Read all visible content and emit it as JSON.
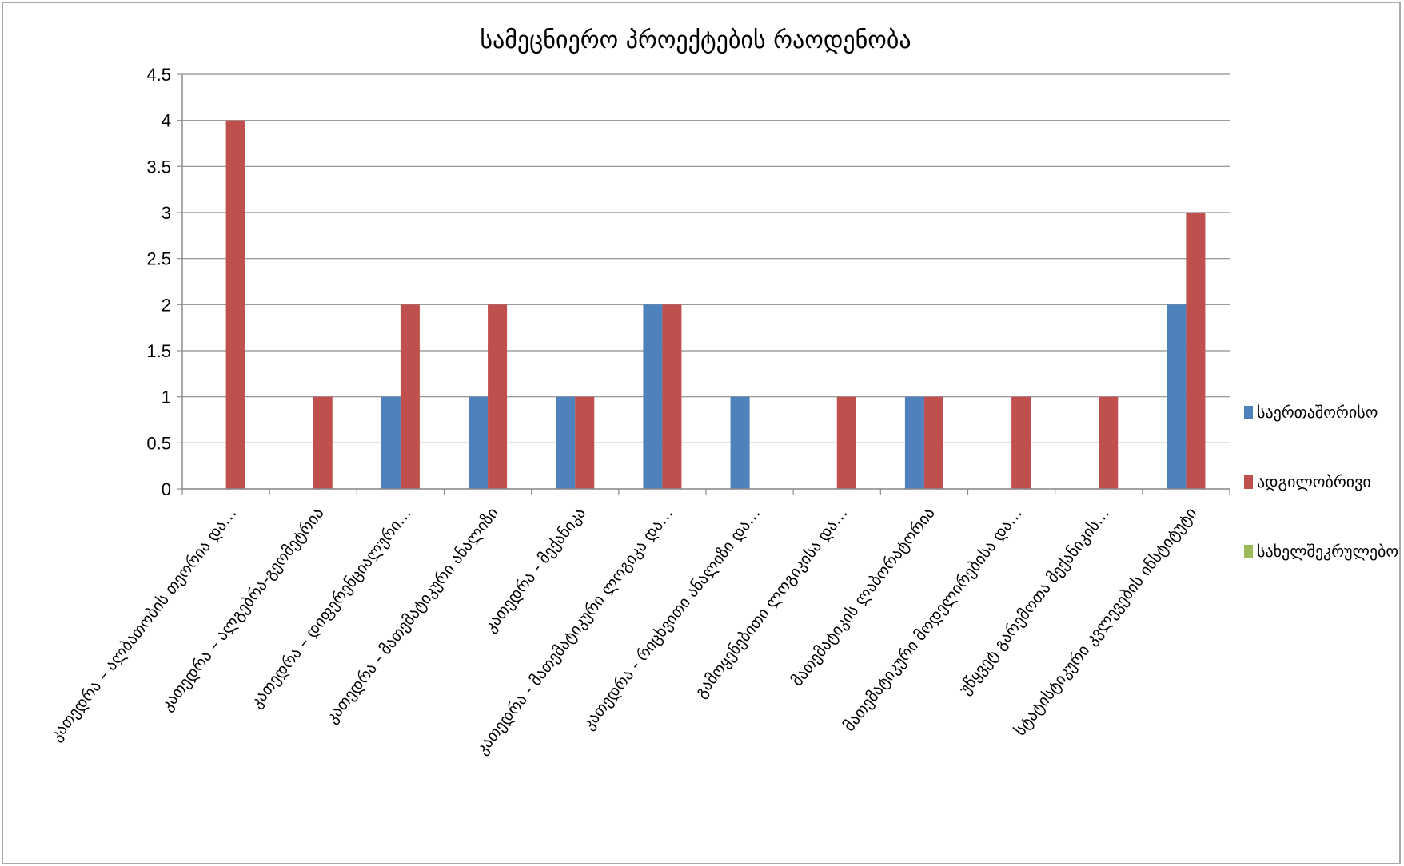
{
  "chart_data": {
    "type": "bar",
    "title": "სამეცნიერო პროექტების რაოდენობა",
    "xlabel": "",
    "ylabel": "",
    "ylim": [
      0,
      4.5
    ],
    "yticks": [
      "0",
      "0.5",
      "1",
      "1.5",
      "2",
      "2.5",
      "3",
      "3.5",
      "4",
      "4.5"
    ],
    "grid": true,
    "legend_position": "right",
    "categories": [
      "კათედრა – ალბათობის თეორია და…",
      "კათედრა – ალგებრა-გეომეტრია",
      "კათედრა – დიფერენციალური…",
      "კათედრა - მათემატიკური ანალიზი",
      "კათედრა - მექანიკა",
      "კათედრა - მათემატიკური ლოგიკა და…",
      "კათედრა - რიცხვითი ანალიზი და…",
      "გამოყენებითი ლოგიკისა და…",
      "მათემატიკის ლაბორატორია",
      "მათემატიკური მოდელირებისა და…",
      "უწყვეტ გარემოთა მექანიკის…",
      "სტატისტიკური კვლევების ინსტიტუტი"
    ],
    "series": [
      {
        "name": "საერთაშორისო",
        "color": "#4f81bd",
        "values": [
          0,
          0,
          1,
          1,
          1,
          2,
          1,
          0,
          1,
          0,
          0,
          2
        ]
      },
      {
        "name": "ადგილობრივი",
        "color": "#c0504d",
        "values": [
          4,
          1,
          2,
          2,
          1,
          2,
          0,
          1,
          1,
          1,
          1,
          3
        ]
      },
      {
        "name": "სახელშეკრულებო",
        "color": "#9bbb59",
        "values": [
          0,
          0,
          0,
          0,
          0,
          0,
          0,
          0,
          0,
          0,
          0,
          0
        ]
      }
    ]
  }
}
